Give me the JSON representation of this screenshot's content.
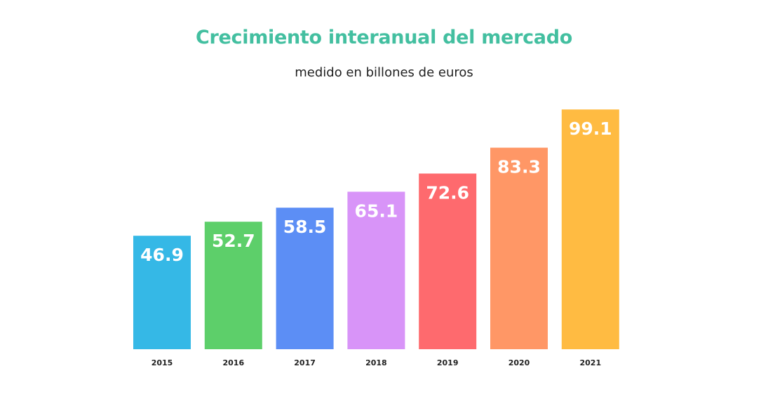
{
  "header": {
    "title": "Crecimiento interanual del mercado",
    "subtitle": "medido en billones de euros"
  },
  "chart_data": {
    "type": "bar",
    "title": "Crecimiento interanual del mercado",
    "subtitle": "medido en billones de euros",
    "categories": [
      "2015",
      "2016",
      "2017",
      "2018",
      "2019",
      "2020",
      "2021"
    ],
    "values": [
      46.9,
      52.7,
      58.5,
      65.1,
      72.6,
      83.3,
      99.1
    ],
    "value_labels": [
      "46.9",
      "52.7",
      "58.5",
      "65.1",
      "72.6",
      "83.3",
      "99.1"
    ],
    "colors": [
      "#35b8e6",
      "#5dcf6a",
      "#5c8ef5",
      "#d894f8",
      "#fe6a6e",
      "#ff9766",
      "#ffbb42"
    ],
    "xlabel": "",
    "ylabel": "",
    "grid": false,
    "legend": "none"
  }
}
